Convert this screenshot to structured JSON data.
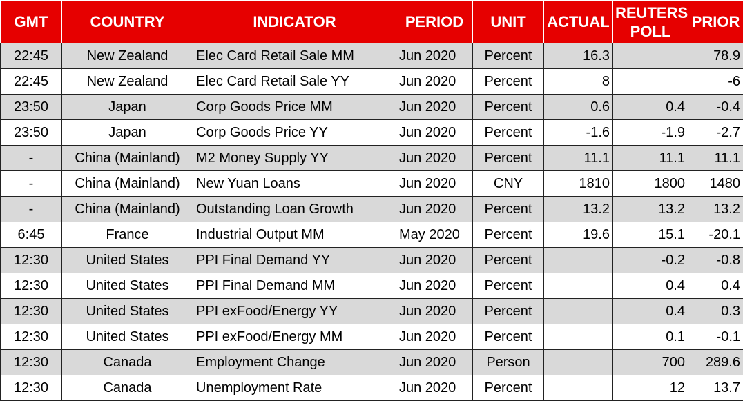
{
  "table": {
    "columns": [
      "GMT",
      "COUNTRY",
      "INDICATOR",
      "PERIOD",
      "UNIT",
      "ACTUAL",
      "REUTERS POLL",
      "PRIOR"
    ],
    "rows": [
      [
        "22:45",
        "New Zealand",
        "Elec Card Retail Sale MM",
        "Jun 2020",
        "Percent",
        16.3,
        null,
        78.9
      ],
      [
        "22:45",
        "New Zealand",
        "Elec Card Retail Sale YY",
        "Jun 2020",
        "Percent",
        8,
        null,
        -6
      ],
      [
        "23:50",
        "Japan",
        "Corp Goods Price MM",
        "Jun 2020",
        "Percent",
        0.6,
        0.4,
        -0.4
      ],
      [
        "23:50",
        "Japan",
        "Corp Goods Price YY",
        "Jun 2020",
        "Percent",
        -1.6,
        -1.9,
        -2.7
      ],
      [
        "-",
        "China (Mainland)",
        "M2 Money Supply YY",
        "Jun 2020",
        "Percent",
        11.1,
        11.1,
        11.1
      ],
      [
        "-",
        "China (Mainland)",
        "New Yuan Loans",
        "Jun 2020",
        "CNY",
        1810,
        1800,
        1480
      ],
      [
        "-",
        "China (Mainland)",
        "Outstanding Loan Growth",
        "Jun 2020",
        "Percent",
        13.2,
        13.2,
        13.2
      ],
      [
        "6:45",
        "France",
        "Industrial Output MM",
        "May 2020",
        "Percent",
        19.6,
        15.1,
        -20.1
      ],
      [
        "12:30",
        "United States",
        "PPI Final Demand YY",
        "Jun 2020",
        "Percent",
        null,
        -0.2,
        -0.8
      ],
      [
        "12:30",
        "United States",
        "PPI Final Demand MM",
        "Jun 2020",
        "Percent",
        null,
        0.4,
        0.4
      ],
      [
        "12:30",
        "United States",
        "PPI exFood/Energy YY",
        "Jun 2020",
        "Percent",
        null,
        0.4,
        0.3
      ],
      [
        "12:30",
        "United States",
        "PPI exFood/Energy MM",
        "Jun 2020",
        "Percent",
        null,
        0.1,
        -0.1
      ],
      [
        "12:30",
        "Canada",
        "Employment Change",
        "Jun 2020",
        "Person",
        null,
        700,
        289.6
      ],
      [
        "12:30",
        "Canada",
        "Unemployment Rate",
        "Jun 2020",
        "Percent",
        null,
        12,
        13.7
      ]
    ]
  }
}
